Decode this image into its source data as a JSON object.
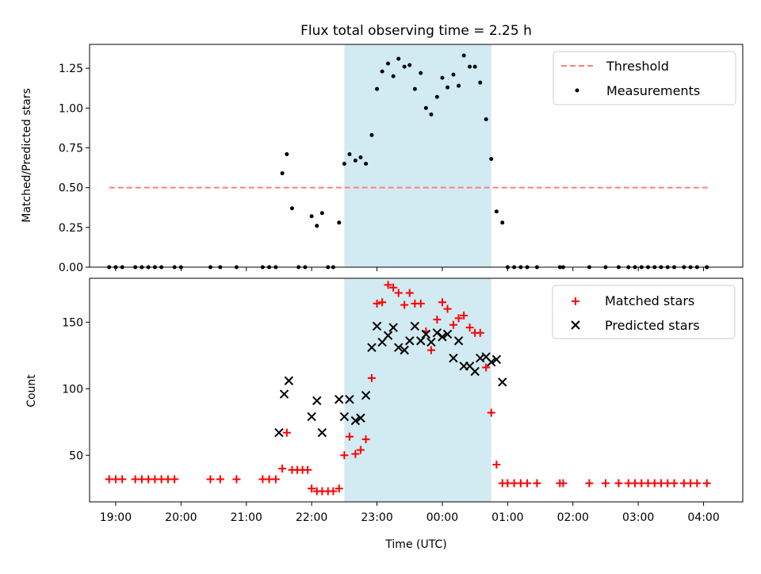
{
  "colors": {
    "shade": "#add8e6",
    "threshold": "#ff7f7f",
    "matched": "#ff0000",
    "predicted": "#000000",
    "measure": "#000000"
  },
  "chart_data": [
    {
      "type": "scatter",
      "title": "Flux total observing time = 2.25 h",
      "xlabel": "",
      "ylabel": "Matched/Predicted stars",
      "xlim": [
        18.6,
        28.6
      ],
      "ylim": [
        0,
        1.4
      ],
      "yticks": [
        "0.00",
        "0.25",
        "0.50",
        "0.75",
        "1.00",
        "1.25"
      ],
      "ytick_values": [
        0,
        0.25,
        0.5,
        0.75,
        1.0,
        1.25
      ],
      "shaded_span": [
        22.5,
        24.75
      ],
      "legend_position": "top-right",
      "threshold": {
        "name": "Threshold",
        "y": 0.5,
        "x_range": [
          18.9,
          28.1
        ]
      },
      "series": [
        {
          "name": "Measurements",
          "points": [
            [
              18.9,
              0
            ],
            [
              19.0,
              0
            ],
            [
              19.1,
              0
            ],
            [
              19.3,
              0
            ],
            [
              19.4,
              0
            ],
            [
              19.5,
              0
            ],
            [
              19.6,
              0
            ],
            [
              19.7,
              0
            ],
            [
              19.9,
              0
            ],
            [
              20.0,
              0
            ],
            [
              20.45,
              0
            ],
            [
              20.6,
              0
            ],
            [
              20.85,
              0
            ],
            [
              21.25,
              0
            ],
            [
              21.35,
              0
            ],
            [
              21.45,
              0
            ],
            [
              21.55,
              0.59
            ],
            [
              21.62,
              0.71
            ],
            [
              21.7,
              0.37
            ],
            [
              21.8,
              0
            ],
            [
              21.9,
              0
            ],
            [
              22.0,
              0.32
            ],
            [
              22.08,
              0.26
            ],
            [
              22.16,
              0.34
            ],
            [
              22.25,
              0
            ],
            [
              22.33,
              0
            ],
            [
              22.42,
              0.28
            ],
            [
              22.5,
              0.65
            ],
            [
              22.58,
              0.71
            ],
            [
              22.67,
              0.67
            ],
            [
              22.75,
              0.69
            ],
            [
              22.83,
              0.65
            ],
            [
              22.92,
              0.83
            ],
            [
              23.0,
              1.12
            ],
            [
              23.08,
              1.23
            ],
            [
              23.17,
              1.28
            ],
            [
              23.25,
              1.2
            ],
            [
              23.33,
              1.31
            ],
            [
              23.42,
              1.26
            ],
            [
              23.5,
              1.27
            ],
            [
              23.58,
              1.12
            ],
            [
              23.67,
              1.22
            ],
            [
              23.75,
              1.0
            ],
            [
              23.83,
              0.96
            ],
            [
              23.92,
              1.07
            ],
            [
              24.0,
              1.19
            ],
            [
              24.08,
              1.13
            ],
            [
              24.17,
              1.21
            ],
            [
              24.25,
              1.14
            ],
            [
              24.33,
              1.33
            ],
            [
              24.42,
              1.26
            ],
            [
              24.5,
              1.26
            ],
            [
              24.58,
              1.16
            ],
            [
              24.67,
              0.93
            ],
            [
              24.75,
              0.68
            ],
            [
              24.83,
              0.35
            ],
            [
              24.92,
              0.28
            ],
            [
              25.0,
              0
            ],
            [
              25.1,
              0
            ],
            [
              25.2,
              0
            ],
            [
              25.3,
              0
            ],
            [
              25.45,
              0
            ],
            [
              25.8,
              0
            ],
            [
              25.85,
              0
            ],
            [
              26.25,
              0
            ],
            [
              26.5,
              0
            ],
            [
              26.7,
              0
            ],
            [
              26.85,
              0
            ],
            [
              26.95,
              0
            ],
            [
              27.05,
              0
            ],
            [
              27.15,
              0
            ],
            [
              27.25,
              0
            ],
            [
              27.35,
              0
            ],
            [
              27.45,
              0
            ],
            [
              27.55,
              0
            ],
            [
              27.7,
              0
            ],
            [
              27.8,
              0
            ],
            [
              27.9,
              0
            ],
            [
              28.05,
              0
            ]
          ]
        }
      ]
    },
    {
      "type": "scatter",
      "title": "",
      "xlabel": "Time (UTC)",
      "ylabel": "Count",
      "xlim": [
        18.6,
        28.6
      ],
      "ylim": [
        15,
        183
      ],
      "yticks": [
        "50",
        "100",
        "150"
      ],
      "ytick_values": [
        50,
        100,
        150
      ],
      "xticks": [
        "19:00",
        "20:00",
        "21:00",
        "22:00",
        "23:00",
        "00:00",
        "01:00",
        "02:00",
        "03:00",
        "04:00"
      ],
      "xtick_values": [
        19,
        20,
        21,
        22,
        23,
        24,
        25,
        26,
        27,
        28
      ],
      "shaded_span": [
        22.5,
        24.75
      ],
      "legend_position": "top-right",
      "series": [
        {
          "name": "Matched stars",
          "marker": "plus",
          "points": [
            [
              18.9,
              32
            ],
            [
              19.0,
              32
            ],
            [
              19.1,
              32
            ],
            [
              19.3,
              32
            ],
            [
              19.4,
              32
            ],
            [
              19.5,
              32
            ],
            [
              19.6,
              32
            ],
            [
              19.7,
              32
            ],
            [
              19.8,
              32
            ],
            [
              19.9,
              32
            ],
            [
              20.45,
              32
            ],
            [
              20.6,
              32
            ],
            [
              20.85,
              32
            ],
            [
              21.25,
              32
            ],
            [
              21.35,
              32
            ],
            [
              21.45,
              32
            ],
            [
              21.55,
              40
            ],
            [
              21.62,
              67
            ],
            [
              21.7,
              39
            ],
            [
              21.78,
              39
            ],
            [
              21.86,
              39
            ],
            [
              21.94,
              39
            ],
            [
              22.0,
              25
            ],
            [
              22.08,
              23
            ],
            [
              22.16,
              23
            ],
            [
              22.25,
              23
            ],
            [
              22.33,
              23
            ],
            [
              22.42,
              25
            ],
            [
              22.5,
              50
            ],
            [
              22.58,
              64
            ],
            [
              22.67,
              51
            ],
            [
              22.75,
              54
            ],
            [
              22.83,
              62
            ],
            [
              22.92,
              108
            ],
            [
              23.0,
              164
            ],
            [
              23.08,
              165
            ],
            [
              23.17,
              178
            ],
            [
              23.25,
              176
            ],
            [
              23.33,
              172
            ],
            [
              23.42,
              163
            ],
            [
              23.5,
              172
            ],
            [
              23.58,
              164
            ],
            [
              23.67,
              164
            ],
            [
              23.75,
              143
            ],
            [
              23.83,
              129
            ],
            [
              23.92,
              152
            ],
            [
              24.0,
              165
            ],
            [
              24.08,
              160
            ],
            [
              24.17,
              148
            ],
            [
              24.25,
              153
            ],
            [
              24.33,
              155
            ],
            [
              24.42,
              146
            ],
            [
              24.5,
              142
            ],
            [
              24.58,
              142
            ],
            [
              24.67,
              116
            ],
            [
              24.75,
              82
            ],
            [
              24.83,
              43
            ],
            [
              24.92,
              29
            ],
            [
              25.0,
              29
            ],
            [
              25.1,
              29
            ],
            [
              25.2,
              29
            ],
            [
              25.3,
              29
            ],
            [
              25.45,
              29
            ],
            [
              25.8,
              29
            ],
            [
              25.85,
              29
            ],
            [
              26.25,
              29
            ],
            [
              26.5,
              29
            ],
            [
              26.7,
              29
            ],
            [
              26.85,
              29
            ],
            [
              26.95,
              29
            ],
            [
              27.05,
              29
            ],
            [
              27.15,
              29
            ],
            [
              27.25,
              29
            ],
            [
              27.35,
              29
            ],
            [
              27.45,
              29
            ],
            [
              27.55,
              29
            ],
            [
              27.7,
              29
            ],
            [
              27.8,
              29
            ],
            [
              27.9,
              29
            ],
            [
              28.05,
              29
            ]
          ]
        },
        {
          "name": "Predicted stars",
          "marker": "x",
          "points": [
            [
              21.5,
              67
            ],
            [
              21.58,
              96
            ],
            [
              21.65,
              106
            ],
            [
              22.0,
              79
            ],
            [
              22.08,
              91
            ],
            [
              22.16,
              67
            ],
            [
              22.42,
              92
            ],
            [
              22.5,
              79
            ],
            [
              22.58,
              92
            ],
            [
              22.67,
              76
            ],
            [
              22.75,
              78
            ],
            [
              22.83,
              95
            ],
            [
              22.92,
              131
            ],
            [
              23.0,
              147
            ],
            [
              23.08,
              135
            ],
            [
              23.17,
              140
            ],
            [
              23.25,
              146
            ],
            [
              23.33,
              131
            ],
            [
              23.42,
              129
            ],
            [
              23.5,
              136
            ],
            [
              23.58,
              147
            ],
            [
              23.67,
              136
            ],
            [
              23.75,
              141
            ],
            [
              23.83,
              135
            ],
            [
              23.92,
              142
            ],
            [
              24.0,
              139
            ],
            [
              24.08,
              141
            ],
            [
              24.17,
              123
            ],
            [
              24.25,
              136
            ],
            [
              24.33,
              117
            ],
            [
              24.42,
              117
            ],
            [
              24.5,
              113
            ],
            [
              24.58,
              123
            ],
            [
              24.67,
              124
            ],
            [
              24.75,
              120
            ],
            [
              24.83,
              122
            ],
            [
              24.92,
              105
            ]
          ]
        }
      ]
    }
  ]
}
